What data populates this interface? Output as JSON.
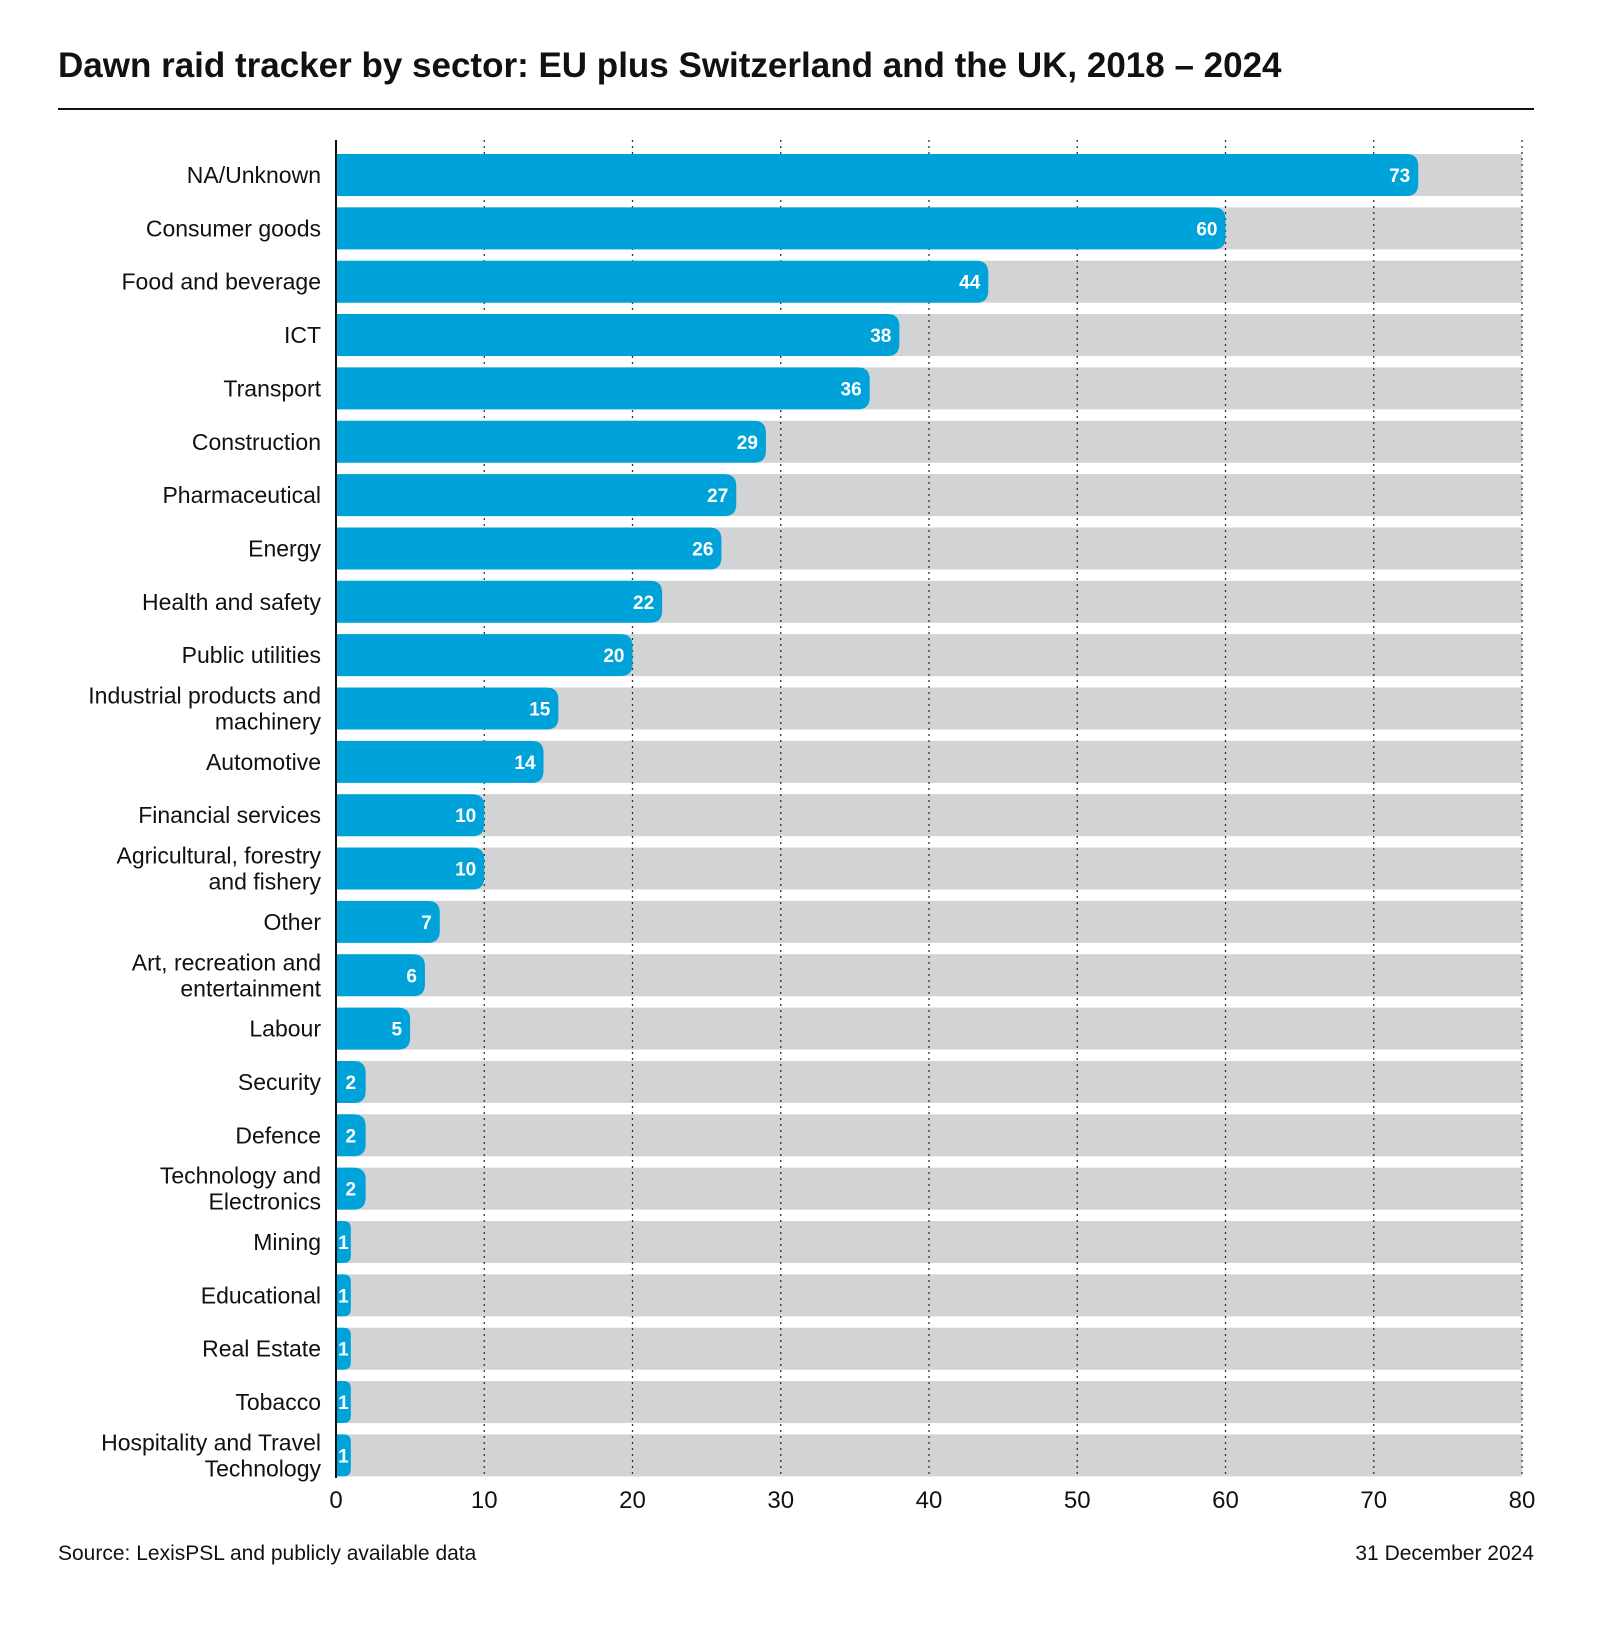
{
  "chart_data": {
    "type": "bar",
    "orientation": "horizontal",
    "title": "Dawn raid tracker by sector: EU plus Switzerland and the UK, 2018 – 2024",
    "xlabel": "",
    "ylabel": "",
    "xlim": [
      0,
      80
    ],
    "xticks": [
      0,
      10,
      20,
      30,
      40,
      50,
      60,
      70,
      80
    ],
    "grid": "vertical-dotted",
    "colors": {
      "bar": "#00a3d9",
      "track": "#d1d3d4",
      "value_label": "#ffffff",
      "grid": "#333333"
    },
    "categories": [
      [
        "NA/Unknown"
      ],
      [
        "Consumer goods"
      ],
      [
        "Food and beverage"
      ],
      [
        "ICT"
      ],
      [
        "Transport"
      ],
      [
        "Construction"
      ],
      [
        "Pharmaceutical"
      ],
      [
        "Energy"
      ],
      [
        "Health and safety"
      ],
      [
        "Public utilities"
      ],
      [
        "Industrial products and",
        "machinery"
      ],
      [
        "Automotive"
      ],
      [
        "Financial services"
      ],
      [
        "Agricultural, forestry",
        "and fishery"
      ],
      [
        "Other"
      ],
      [
        "Art, recreation and",
        "entertainment"
      ],
      [
        "Labour"
      ],
      [
        "Security"
      ],
      [
        "Defence"
      ],
      [
        "Technology and",
        "Electronics"
      ],
      [
        "Mining"
      ],
      [
        "Educational"
      ],
      [
        "Real Estate"
      ],
      [
        "Tobacco"
      ],
      [
        "Hospitality and Travel",
        "Technology"
      ]
    ],
    "values": [
      73,
      60,
      44,
      38,
      36,
      29,
      27,
      26,
      22,
      20,
      15,
      14,
      10,
      10,
      7,
      6,
      5,
      2,
      2,
      2,
      1,
      1,
      1,
      1,
      1
    ]
  },
  "footer": {
    "source": "Source: LexisPSL and publicly available data",
    "date": "31 December 2024"
  }
}
